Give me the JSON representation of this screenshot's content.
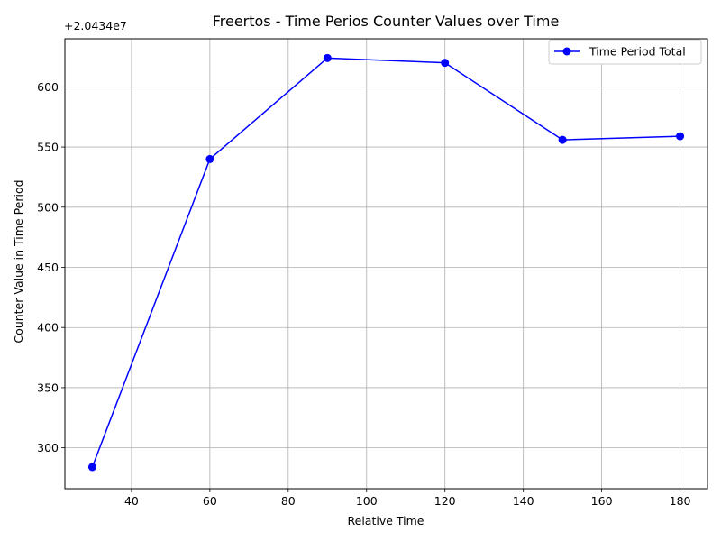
{
  "chart_data": {
    "type": "line",
    "title": "Freertos - Time Perios Counter Values over Time",
    "xlabel": "Relative Time",
    "ylabel": "Counter Value in Time Period",
    "y_offset_label": "+2.0434e7",
    "y_offset": 20434000,
    "xlim": [
      23,
      187
    ],
    "ylim": [
      266,
      640
    ],
    "x_ticks": [
      40,
      60,
      80,
      100,
      120,
      140,
      160,
      180
    ],
    "y_ticks": [
      300,
      350,
      400,
      450,
      500,
      550,
      600
    ],
    "grid": true,
    "legend_position": "top-right",
    "series": [
      {
        "name": "Time Period Total",
        "color": "#0000ff",
        "marker": "circle",
        "x": [
          30,
          60,
          90,
          120,
          150,
          180
        ],
        "y": [
          20434284,
          20434540,
          20434624,
          20434620,
          20434556,
          20434559
        ]
      }
    ]
  }
}
